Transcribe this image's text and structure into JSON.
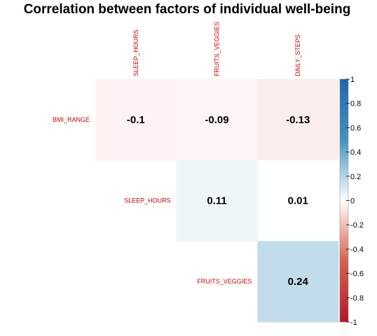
{
  "chart_data": {
    "type": "heatmap",
    "title": "Correlation between factors of individual well-being",
    "rows": [
      "BMI_RANGE",
      "SLEEP_HOURS",
      "FRUITS_VEGGIES"
    ],
    "cols": [
      "SLEEP_HOURS",
      "FRUITS_VEGGIES",
      "DAILY_STEPS"
    ],
    "cells": [
      {
        "row": 0,
        "col": 0,
        "value": -0.1,
        "label": "-0.1"
      },
      {
        "row": 0,
        "col": 1,
        "value": -0.09,
        "label": "-0.09"
      },
      {
        "row": 0,
        "col": 2,
        "value": -0.13,
        "label": "-0.13"
      },
      {
        "row": 1,
        "col": 1,
        "value": 0.11,
        "label": "0.11"
      },
      {
        "row": 1,
        "col": 2,
        "value": 0.01,
        "label": "0.01"
      },
      {
        "row": 2,
        "col": 2,
        "value": 0.24,
        "label": "0.24"
      }
    ],
    "colorbar": {
      "range": [
        -1,
        1
      ],
      "ticks": [
        "1",
        "0.8",
        "0.6",
        "0.4",
        "0.2",
        "0",
        "-0.2",
        "-0.4",
        "-0.6",
        "-0.8",
        "-1"
      ],
      "tick_values": [
        1,
        0.8,
        0.6,
        0.4,
        0.2,
        0,
        -0.2,
        -0.4,
        -0.6,
        -0.8,
        -1
      ],
      "low_color": "#b2182b",
      "mid_color": "#ffffff",
      "high_color": "#2166ac"
    },
    "label_color": "#cc0000",
    "grid": false
  }
}
